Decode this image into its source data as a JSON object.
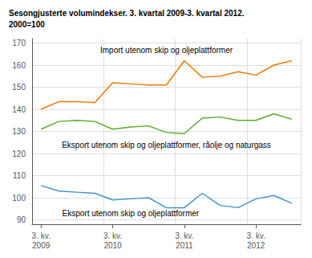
{
  "chart_data": {
    "type": "line",
    "title": "Sesongjusterte volumindekser. 3. kvartal 2009-3. kvartal 2012.\n2000=100",
    "categories": [
      "3. kv.\n2009",
      null,
      null,
      null,
      "3. kv.\n2010",
      null,
      null,
      null,
      "3. kv.\n2011",
      null,
      null,
      null,
      "3. kv.\n2012",
      null,
      null
    ],
    "ylim": [
      88,
      172
    ],
    "yticks": [
      90,
      100,
      110,
      120,
      130,
      140,
      150,
      160,
      170
    ],
    "grid": true,
    "series": [
      {
        "name": "Import utenom skip og oljeplattformer",
        "color": "#f07800",
        "values": [
          140.0,
          143.5,
          143.5,
          143.0,
          152.0,
          151.5,
          151.0,
          151.0,
          162.0,
          154.5,
          155.0,
          157.0,
          155.5,
          160.0,
          162.0
        ]
      },
      {
        "name": "Eksport utenom skip og oljeplattformer, råolje og naturgass",
        "color": "#5aaa28",
        "values": [
          131.0,
          134.5,
          135.0,
          134.5,
          131.0,
          132.0,
          132.5,
          129.5,
          129.0,
          136.0,
          136.5,
          135.0,
          135.0,
          138.0,
          135.5
        ]
      },
      {
        "name": "Eksport utenom skip og oljeplattformer",
        "color": "#4492c8",
        "values": [
          105.5,
          103.0,
          102.5,
          102.0,
          99.0,
          99.5,
          100.0,
          95.5,
          95.5,
          102.0,
          96.5,
          95.5,
          99.5,
          101.0,
          97.5
        ]
      }
    ],
    "annotations": [
      {
        "text": "Import utenom skip og oljeplattformer",
        "x": 7,
        "y": 165
      },
      {
        "text": "Eksport utenom skip og oljeplattformer, råolje og naturgass",
        "x": 7,
        "y": 122
      },
      {
        "text": "Eksport utenom skip og oljeplattformer",
        "x": 5,
        "y": 91
      }
    ]
  }
}
